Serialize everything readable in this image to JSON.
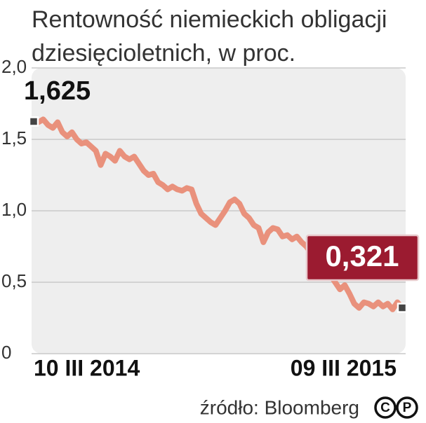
{
  "chart_data": {
    "type": "line",
    "title": "Rentowność niemieckich obligacji dziesięcioletnich, w proc.",
    "categories": [
      "10 III 2014",
      null,
      null,
      null,
      null,
      null,
      null,
      null,
      null,
      null,
      null,
      null,
      null,
      null,
      null,
      null,
      null,
      null,
      null,
      null,
      null,
      null,
      null,
      null,
      null,
      null,
      null,
      null,
      null,
      null,
      null,
      null,
      null,
      null,
      null,
      null,
      null,
      null,
      null,
      null,
      null,
      null,
      null,
      null,
      null,
      null,
      null,
      null,
      null,
      null,
      null,
      null,
      null,
      null,
      null,
      null,
      null,
      null,
      null,
      null,
      null,
      null,
      null,
      null,
      null,
      null,
      null,
      null,
      null,
      null,
      null,
      null,
      null,
      null,
      null,
      null,
      null,
      "09 III 2015"
    ],
    "series": [
      {
        "color": "#e9917c",
        "values": [
          1.625,
          1.62,
          1.64,
          1.6,
          1.58,
          1.62,
          1.55,
          1.52,
          1.55,
          1.5,
          1.47,
          1.48,
          1.45,
          1.42,
          1.32,
          1.4,
          1.38,
          1.35,
          1.42,
          1.38,
          1.36,
          1.38,
          1.33,
          1.28,
          1.25,
          1.26,
          1.2,
          1.18,
          1.15,
          1.17,
          1.15,
          1.14,
          1.16,
          1.15,
          1.05,
          0.98,
          0.95,
          0.92,
          0.9,
          0.95,
          1.0,
          1.06,
          1.08,
          1.05,
          0.98,
          0.95,
          0.9,
          0.88,
          0.78,
          0.85,
          0.88,
          0.87,
          0.82,
          0.83,
          0.8,
          0.82,
          0.78,
          0.75,
          0.7,
          0.68,
          0.62,
          0.6,
          0.55,
          0.5,
          0.45,
          0.48,
          0.42,
          0.35,
          0.32,
          0.36,
          0.35,
          0.33,
          0.36,
          0.33,
          0.35,
          0.31,
          0.36,
          0.321
        ],
        "value_labels": [
          "1,625",
          null,
          null,
          null,
          null,
          null,
          null,
          null,
          null,
          null,
          null,
          null,
          null,
          null,
          null,
          null,
          null,
          null,
          null,
          null,
          null,
          null,
          null,
          null,
          null,
          null,
          null,
          null,
          null,
          null,
          null,
          null,
          null,
          null,
          null,
          null,
          null,
          null,
          null,
          null,
          null,
          null,
          null,
          null,
          null,
          null,
          null,
          null,
          null,
          null,
          null,
          null,
          null,
          null,
          null,
          null,
          null,
          null,
          null,
          null,
          null,
          null,
          null,
          null,
          null,
          null,
          null,
          null,
          null,
          null,
          null,
          null,
          null,
          null,
          null,
          null,
          null,
          "0,321"
        ]
      }
    ],
    "ylim": [
      0,
      2
    ],
    "yticks": [
      0,
      {
        "value": 0.5,
        "label": "0,5"
      },
      {
        "value": 1,
        "label": "1,0"
      },
      {
        "value": 1.5,
        "label": "1,5"
      },
      {
        "value": 2,
        "label": "2,0"
      }
    ],
    "grid": true,
    "source": "źródło: Bloomberg",
    "logo": [
      "C",
      "P"
    ]
  }
}
